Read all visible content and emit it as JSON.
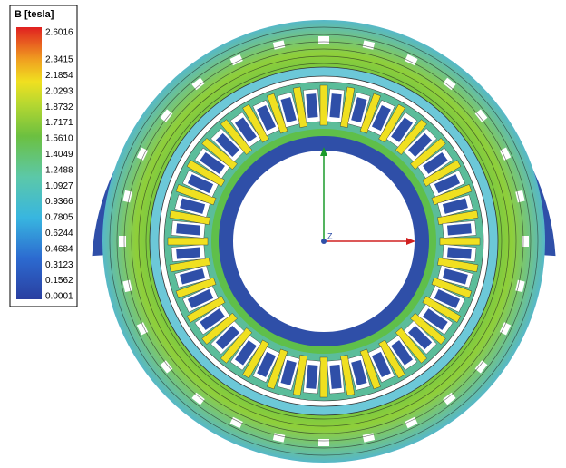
{
  "legend": {
    "title": "B [tesla]",
    "labels": [
      "2.6016",
      "2.3415",
      "2.1854",
      "2.0293",
      "1.8732",
      "1.7171",
      "1.5610",
      "1.4049",
      "1.2488",
      "1.0927",
      "0.9366",
      "0.7805",
      "0.6244",
      "0.4684",
      "0.3123",
      "0.1562",
      "0.0001"
    ]
  },
  "axes": {
    "z_label": "Z"
  }
}
